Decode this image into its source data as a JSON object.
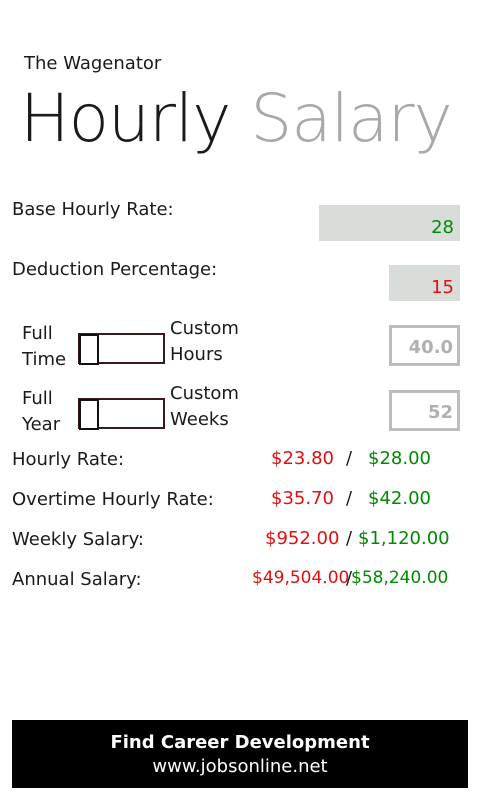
{
  "app_title": "The Wagenator",
  "header": {
    "word1": "Hourly",
    "word2": "Salary"
  },
  "inputs": {
    "base_rate_label": "Base Hourly Rate:",
    "base_rate_value": "28",
    "deduction_label": "Deduction Percentage:",
    "deduction_value": "15"
  },
  "toggles": {
    "full_time_label_line1": "Full",
    "full_time_label_line2": "Time",
    "custom_hours_label_line1": "Custom",
    "custom_hours_label_line2": "Hours",
    "custom_hours_value": "40.0",
    "full_year_label_line1": "Full",
    "full_year_label_line2": "Year",
    "custom_weeks_label_line1": "Custom",
    "custom_weeks_label_line2": "Weeks",
    "custom_weeks_value": "52"
  },
  "results": {
    "separator": "/",
    "rows": [
      {
        "label": "Hourly Rate:",
        "net": "$23.80",
        "gross": "$28.00"
      },
      {
        "label": "Overtime Hourly Rate:",
        "net": "$35.70",
        "gross": "$42.00"
      },
      {
        "label": "Weekly Salary:",
        "net": "$952.00",
        "gross": "$1,120.00"
      },
      {
        "label": "Annual Salary:",
        "net": "$49,504.00",
        "gross": "$58,240.00"
      }
    ]
  },
  "banner": {
    "line1": "Find Career Development",
    "line2": "www.jobsonline.net"
  },
  "colors": {
    "net_value": "#e01010",
    "gross_value": "#008a00",
    "field_background": "#d9ddd9",
    "header_secondary": "#a8a8a8",
    "banner_background": "#000000"
  }
}
